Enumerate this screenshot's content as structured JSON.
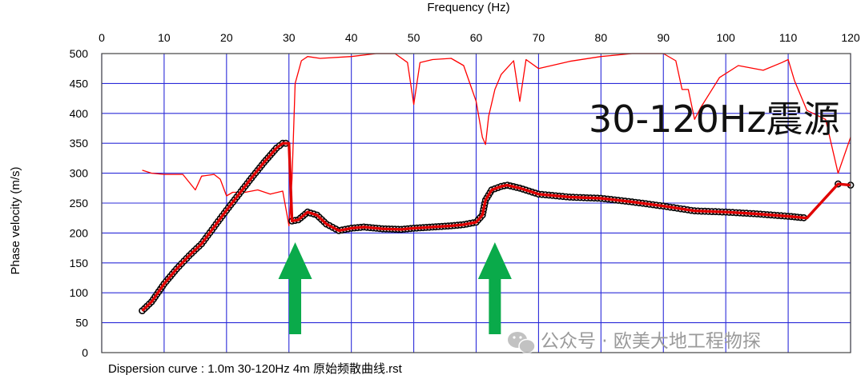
{
  "chart_data": {
    "type": "line",
    "xlabel": "Frequency (Hz)",
    "ylabel": "Phase velocity (m/s)",
    "xlim": [
      0,
      120
    ],
    "ylim": [
      0,
      500
    ],
    "xticks": [
      0,
      10,
      20,
      30,
      40,
      50,
      60,
      70,
      80,
      90,
      100,
      110,
      120
    ],
    "yticks": [
      0,
      50,
      100,
      150,
      200,
      250,
      300,
      350,
      400,
      450,
      500
    ],
    "x_axis_position": "top",
    "grid": true,
    "grid_color": "#2b2bd9",
    "colors": {
      "dispersion": "#e00000",
      "markers": "#000000",
      "spectrum": "#ff0000",
      "arrows": "#0aaa4a"
    },
    "series": [
      {
        "style": "thick-red-with-markers",
        "x": [
          6.5,
          8,
          10,
          12,
          14,
          16,
          18,
          20,
          22,
          24,
          26,
          28,
          29,
          30,
          30.5,
          31.5,
          33,
          34.5,
          36,
          38,
          40,
          42,
          45,
          48,
          50,
          53,
          56,
          58,
          60,
          61,
          61.5,
          62.5,
          64,
          65,
          67,
          70,
          75,
          80,
          85,
          90,
          95,
          100,
          105,
          110,
          113,
          118,
          120
        ],
        "y": [
          70,
          85,
          115,
          140,
          162,
          182,
          210,
          238,
          265,
          292,
          318,
          342,
          350,
          350,
          220,
          222,
          235,
          230,
          215,
          204,
          208,
          210,
          207,
          206,
          208,
          210,
          212,
          214,
          218,
          230,
          255,
          272,
          278,
          280,
          275,
          265,
          260,
          258,
          252,
          245,
          237,
          235,
          232,
          228,
          225,
          282,
          280
        ]
      },
      {
        "style": "thin-red",
        "x": [
          6.5,
          8,
          10,
          13,
          15,
          16,
          18,
          19,
          20,
          21,
          23,
          25,
          27,
          29,
          30,
          30.5,
          31,
          32,
          33,
          35,
          40,
          44,
          47,
          49,
          50,
          51,
          53,
          56,
          58,
          59,
          60,
          61,
          61.5,
          62,
          63,
          64,
          66,
          67,
          68,
          70,
          75,
          80,
          85,
          90,
          92,
          93,
          94,
          95,
          96,
          99,
          102,
          106,
          109,
          110,
          111,
          113,
          116,
          118,
          120
        ],
        "y": [
          305,
          300,
          298,
          298,
          272,
          295,
          298,
          290,
          262,
          268,
          268,
          272,
          265,
          270,
          212,
          290,
          450,
          488,
          495,
          492,
          495,
          500,
          500,
          485,
          415,
          485,
          490,
          492,
          480,
          450,
          420,
          360,
          348,
          395,
          440,
          465,
          488,
          420,
          490,
          475,
          487,
          495,
          500,
          500,
          488,
          440,
          440,
          390,
          410,
          460,
          480,
          472,
          485,
          490,
          455,
          405,
          390,
          300,
          360
        ]
      }
    ],
    "annotations": [
      {
        "type": "arrow",
        "x": 31,
        "direction": "up"
      },
      {
        "type": "arrow",
        "x": 63,
        "direction": "up"
      }
    ]
  },
  "overlay_text": "30-120Hz震源",
  "watermark": "公众号 · 欧美大地工程物探",
  "footer": "Dispersion curve : 1.0m  30-120Hz  4m  原始频散曲线.rst"
}
